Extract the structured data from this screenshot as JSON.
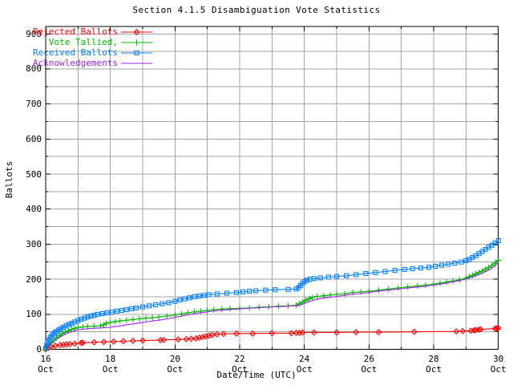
{
  "chart_data": {
    "type": "line",
    "title": "Section 4.1.5 Disambiguation Vote Statistics",
    "xlabel": "Date/Time (UTC)",
    "ylabel": "Ballots",
    "x_unit": "day of October (UTC)",
    "xlim": [
      16,
      30
    ],
    "ylim": [
      0,
      920
    ],
    "grid": "on",
    "grid_x_step_days": 1,
    "grid_y_step": 50,
    "legend_position": "top-left-inside",
    "grid_color": "#a4a4a4",
    "frame_color": "#000000",
    "xticks": [
      {
        "x": 16,
        "label": "16",
        "sublabel": "Oct"
      },
      {
        "x": 18,
        "label": "18",
        "sublabel": "Oct"
      },
      {
        "x": 20,
        "label": "20",
        "sublabel": "Oct"
      },
      {
        "x": 22,
        "label": "22",
        "sublabel": "Oct"
      },
      {
        "x": 24,
        "label": "24",
        "sublabel": "Oct"
      },
      {
        "x": 26,
        "label": "26",
        "sublabel": "Oct"
      },
      {
        "x": 28,
        "label": "28",
        "sublabel": "Oct"
      },
      {
        "x": 30,
        "label": "30",
        "sublabel": "Oct"
      }
    ],
    "yticks": [
      {
        "y": 0,
        "label": "0"
      },
      {
        "y": 100,
        "label": "100"
      },
      {
        "y": 200,
        "label": "200"
      },
      {
        "y": 300,
        "label": "300"
      },
      {
        "y": 400,
        "label": "400"
      },
      {
        "y": 500,
        "label": "500"
      },
      {
        "y": 600,
        "label": "600"
      },
      {
        "y": 700,
        "label": "700"
      },
      {
        "y": 800,
        "label": "800"
      },
      {
        "y": 900,
        "label": "900"
      }
    ],
    "series": [
      {
        "name": "Rejected Ballots",
        "color": "#ff0000",
        "marker": "diamond",
        "points": [
          [
            16.0,
            0
          ],
          [
            16.08,
            4
          ],
          [
            16.17,
            7
          ],
          [
            16.3,
            10
          ],
          [
            16.45,
            12
          ],
          [
            16.55,
            13
          ],
          [
            16.65,
            14
          ],
          [
            16.75,
            15
          ],
          [
            16.9,
            16
          ],
          [
            17.1,
            18
          ],
          [
            17.15,
            19
          ],
          [
            17.5,
            20
          ],
          [
            17.8,
            21
          ],
          [
            18.1,
            22
          ],
          [
            18.4,
            23
          ],
          [
            18.7,
            24
          ],
          [
            19.0,
            25
          ],
          [
            19.55,
            26
          ],
          [
            19.65,
            27
          ],
          [
            20.1,
            28
          ],
          [
            20.35,
            29
          ],
          [
            20.5,
            30
          ],
          [
            20.65,
            31
          ],
          [
            20.75,
            33
          ],
          [
            20.85,
            35
          ],
          [
            20.95,
            37
          ],
          [
            21.05,
            39
          ],
          [
            21.15,
            41
          ],
          [
            21.3,
            43
          ],
          [
            21.5,
            44
          ],
          [
            21.9,
            45
          ],
          [
            22.4,
            45
          ],
          [
            23.0,
            46
          ],
          [
            23.6,
            46
          ],
          [
            23.75,
            47
          ],
          [
            23.85,
            47
          ],
          [
            23.95,
            48
          ],
          [
            24.3,
            48
          ],
          [
            25.0,
            48
          ],
          [
            25.6,
            49
          ],
          [
            26.3,
            49
          ],
          [
            27.4,
            50
          ],
          [
            28.7,
            51
          ],
          [
            28.9,
            52
          ],
          [
            29.15,
            53
          ],
          [
            29.25,
            54
          ],
          [
            29.3,
            55
          ],
          [
            29.4,
            56
          ],
          [
            29.45,
            57
          ],
          [
            29.9,
            59
          ],
          [
            29.95,
            60
          ],
          [
            30.0,
            61
          ]
        ]
      },
      {
        "name": "Vote Tallied,",
        "color": "#00b800",
        "marker": "plus",
        "points": [
          [
            16.0,
            1
          ],
          [
            16.05,
            6
          ],
          [
            16.1,
            12
          ],
          [
            16.17,
            19
          ],
          [
            16.25,
            26
          ],
          [
            16.33,
            33
          ],
          [
            16.42,
            39
          ],
          [
            16.5,
            44
          ],
          [
            16.6,
            49
          ],
          [
            16.7,
            53
          ],
          [
            16.8,
            57
          ],
          [
            16.9,
            60
          ],
          [
            17.0,
            62
          ],
          [
            17.15,
            64
          ],
          [
            17.3,
            65
          ],
          [
            17.5,
            66
          ],
          [
            17.7,
            67
          ],
          [
            17.8,
            70
          ],
          [
            17.87,
            74
          ],
          [
            18.0,
            77
          ],
          [
            18.15,
            79
          ],
          [
            18.3,
            81
          ],
          [
            18.5,
            83
          ],
          [
            18.7,
            85
          ],
          [
            18.9,
            87
          ],
          [
            19.1,
            89
          ],
          [
            19.3,
            90
          ],
          [
            19.5,
            92
          ],
          [
            19.75,
            95
          ],
          [
            20.0,
            98
          ],
          [
            20.2,
            101
          ],
          [
            20.4,
            104
          ],
          [
            20.6,
            107
          ],
          [
            20.8,
            109
          ],
          [
            21.0,
            111
          ],
          [
            21.2,
            113
          ],
          [
            21.45,
            115
          ],
          [
            21.7,
            116
          ],
          [
            22.0,
            117
          ],
          [
            22.3,
            118
          ],
          [
            22.6,
            120
          ],
          [
            22.9,
            121
          ],
          [
            23.2,
            123
          ],
          [
            23.5,
            124
          ],
          [
            23.75,
            126
          ],
          [
            23.85,
            130
          ],
          [
            23.95,
            135
          ],
          [
            24.05,
            140
          ],
          [
            24.15,
            144
          ],
          [
            24.25,
            148
          ],
          [
            24.4,
            151
          ],
          [
            24.6,
            153
          ],
          [
            24.8,
            155
          ],
          [
            25.0,
            157
          ],
          [
            25.25,
            159
          ],
          [
            25.5,
            162
          ],
          [
            25.75,
            164
          ],
          [
            26.0,
            166
          ],
          [
            26.3,
            169
          ],
          [
            26.6,
            172
          ],
          [
            26.9,
            175
          ],
          [
            27.2,
            178
          ],
          [
            27.5,
            181
          ],
          [
            27.75,
            183
          ],
          [
            28.0,
            186
          ],
          [
            28.2,
            189
          ],
          [
            28.4,
            192
          ],
          [
            28.6,
            195
          ],
          [
            28.8,
            198
          ],
          [
            29.0,
            203
          ],
          [
            29.1,
            207
          ],
          [
            29.2,
            211
          ],
          [
            29.3,
            215
          ],
          [
            29.4,
            219
          ],
          [
            29.5,
            223
          ],
          [
            29.6,
            228
          ],
          [
            29.7,
            233
          ],
          [
            29.8,
            239
          ],
          [
            29.9,
            246
          ],
          [
            30.0,
            254
          ]
        ]
      },
      {
        "name": "Received Ballots",
        "color": "#0080ff",
        "marker": "square",
        "points": [
          [
            16.0,
            3
          ],
          [
            16.03,
            12
          ],
          [
            16.06,
            20
          ],
          [
            16.1,
            27
          ],
          [
            16.14,
            33
          ],
          [
            16.18,
            38
          ],
          [
            16.23,
            43
          ],
          [
            16.28,
            47
          ],
          [
            16.33,
            51
          ],
          [
            16.4,
            55
          ],
          [
            16.47,
            59
          ],
          [
            16.55,
            63
          ],
          [
            16.63,
            67
          ],
          [
            16.72,
            71
          ],
          [
            16.8,
            74
          ],
          [
            16.9,
            78
          ],
          [
            17.0,
            82
          ],
          [
            17.1,
            86
          ],
          [
            17.2,
            89
          ],
          [
            17.3,
            92
          ],
          [
            17.4,
            95
          ],
          [
            17.5,
            97
          ],
          [
            17.6,
            100
          ],
          [
            17.75,
            102
          ],
          [
            17.9,
            104
          ],
          [
            18.05,
            106
          ],
          [
            18.2,
            109
          ],
          [
            18.35,
            111
          ],
          [
            18.5,
            113
          ],
          [
            18.65,
            116
          ],
          [
            18.8,
            118
          ],
          [
            19.0,
            121
          ],
          [
            19.2,
            124
          ],
          [
            19.4,
            127
          ],
          [
            19.6,
            130
          ],
          [
            19.8,
            133
          ],
          [
            20.0,
            137
          ],
          [
            20.15,
            141
          ],
          [
            20.3,
            144
          ],
          [
            20.45,
            147
          ],
          [
            20.6,
            150
          ],
          [
            20.75,
            152
          ],
          [
            20.9,
            154
          ],
          [
            21.05,
            156
          ],
          [
            21.3,
            158
          ],
          [
            21.6,
            160
          ],
          [
            21.9,
            162
          ],
          [
            22.1,
            164
          ],
          [
            22.3,
            166
          ],
          [
            22.5,
            167
          ],
          [
            22.8,
            169
          ],
          [
            23.1,
            170
          ],
          [
            23.5,
            171
          ],
          [
            23.75,
            172
          ],
          [
            23.82,
            176
          ],
          [
            23.88,
            182
          ],
          [
            23.94,
            188
          ],
          [
            24.0,
            193
          ],
          [
            24.08,
            197
          ],
          [
            24.17,
            200
          ],
          [
            24.3,
            202
          ],
          [
            24.5,
            204
          ],
          [
            24.75,
            206
          ],
          [
            25.0,
            208
          ],
          [
            25.3,
            210
          ],
          [
            25.6,
            213
          ],
          [
            25.9,
            216
          ],
          [
            26.2,
            219
          ],
          [
            26.5,
            222
          ],
          [
            26.8,
            225
          ],
          [
            27.1,
            228
          ],
          [
            27.35,
            230
          ],
          [
            27.6,
            232
          ],
          [
            27.85,
            234
          ],
          [
            28.05,
            237
          ],
          [
            28.25,
            240
          ],
          [
            28.45,
            243
          ],
          [
            28.65,
            246
          ],
          [
            28.85,
            249
          ],
          [
            29.0,
            253
          ],
          [
            29.1,
            257
          ],
          [
            29.2,
            262
          ],
          [
            29.3,
            267
          ],
          [
            29.4,
            273
          ],
          [
            29.5,
            279
          ],
          [
            29.6,
            285
          ],
          [
            29.7,
            291
          ],
          [
            29.8,
            297
          ],
          [
            29.9,
            303
          ],
          [
            30.0,
            310
          ]
        ]
      },
      {
        "name": "Acknowledgements",
        "color": "#a020f0",
        "marker": "none",
        "points": [
          [
            16.0,
            0
          ],
          [
            16.06,
            6
          ],
          [
            16.12,
            12
          ],
          [
            16.2,
            19
          ],
          [
            16.3,
            26
          ],
          [
            16.4,
            33
          ],
          [
            16.5,
            38
          ],
          [
            16.62,
            44
          ],
          [
            16.75,
            49
          ],
          [
            16.9,
            53
          ],
          [
            17.0,
            56
          ],
          [
            17.2,
            58
          ],
          [
            17.45,
            60
          ],
          [
            17.7,
            61
          ],
          [
            18.0,
            63
          ],
          [
            18.25,
            66
          ],
          [
            18.5,
            70
          ],
          [
            18.75,
            73
          ],
          [
            19.0,
            77
          ],
          [
            19.25,
            80
          ],
          [
            19.5,
            83
          ],
          [
            19.75,
            87
          ],
          [
            20.0,
            91
          ],
          [
            20.25,
            96
          ],
          [
            20.5,
            100
          ],
          [
            20.75,
            104
          ],
          [
            21.0,
            107
          ],
          [
            21.25,
            110
          ],
          [
            21.5,
            112
          ],
          [
            21.8,
            114
          ],
          [
            22.1,
            116
          ],
          [
            22.4,
            118
          ],
          [
            22.7,
            119
          ],
          [
            23.0,
            121
          ],
          [
            23.3,
            122
          ],
          [
            23.6,
            124
          ],
          [
            23.8,
            125
          ],
          [
            24.0,
            131
          ],
          [
            24.15,
            136
          ],
          [
            24.3,
            141
          ],
          [
            24.5,
            145
          ],
          [
            24.75,
            148
          ],
          [
            25.0,
            151
          ],
          [
            25.3,
            155
          ],
          [
            25.6,
            158
          ],
          [
            25.9,
            161
          ],
          [
            26.2,
            165
          ],
          [
            26.5,
            168
          ],
          [
            26.8,
            171
          ],
          [
            27.1,
            174
          ],
          [
            27.4,
            177
          ],
          [
            27.7,
            180
          ],
          [
            28.0,
            183
          ],
          [
            28.2,
            186
          ],
          [
            28.4,
            189
          ],
          [
            28.6,
            193
          ],
          [
            28.8,
            196
          ],
          [
            29.0,
            201
          ],
          [
            29.15,
            205
          ],
          [
            29.3,
            210
          ],
          [
            29.45,
            215
          ],
          [
            29.6,
            221
          ],
          [
            29.75,
            228
          ],
          [
            29.9,
            238
          ],
          [
            30.0,
            248
          ]
        ]
      }
    ]
  }
}
